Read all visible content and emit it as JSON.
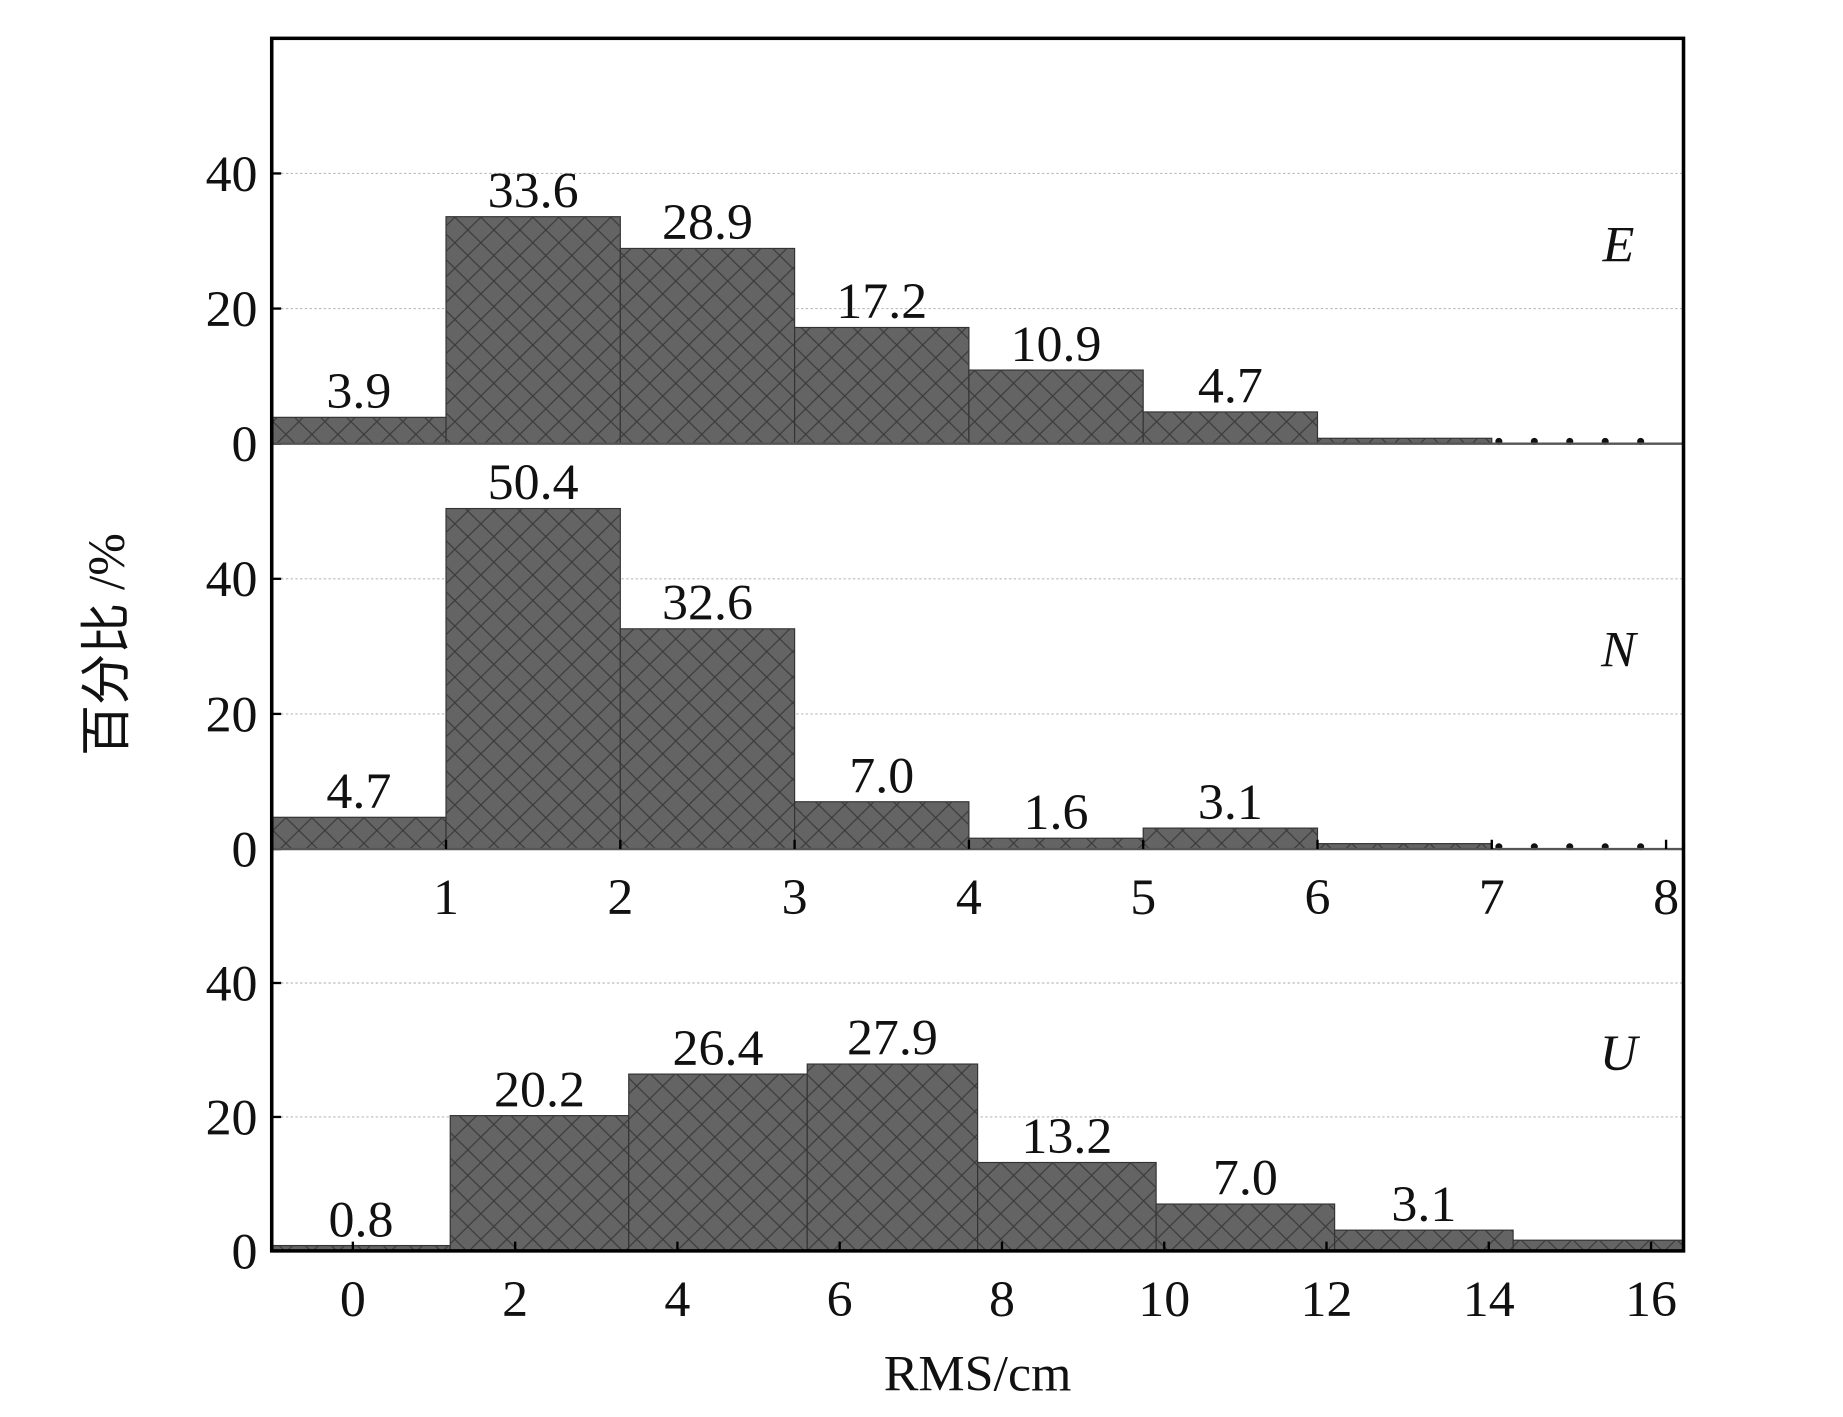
{
  "y_label": "百分比 /%",
  "chart_data": [
    {
      "type": "histogram",
      "label": "E",
      "color": "#646464",
      "bins": [
        0,
        1,
        2,
        3,
        4,
        5,
        6,
        7,
        8
      ],
      "values": [
        3.9,
        33.6,
        28.9,
        17.2,
        10.9,
        4.7,
        0.8,
        0
      ],
      "value_labels": [
        "3.9",
        "33.6",
        "28.9",
        "17.2",
        "10.9",
        "4.7",
        null,
        null
      ],
      "xlim": [
        0,
        8.1
      ],
      "ylim": [
        0,
        60
      ],
      "yticks": [
        0,
        20,
        40
      ],
      "grid": true
    },
    {
      "type": "histogram",
      "label": "N",
      "color": "#646464",
      "bins": [
        0,
        1,
        2,
        3,
        4,
        5,
        6,
        7,
        8
      ],
      "values": [
        4.7,
        50.4,
        32.6,
        7.0,
        1.6,
        3.1,
        0.8,
        0
      ],
      "value_labels": [
        "4.7",
        "50.4",
        "32.6",
        "7.0",
        "1.6",
        "3.1",
        null,
        null
      ],
      "xlim": [
        0,
        8.1
      ],
      "xticks": [
        1,
        2,
        3,
        4,
        5,
        6,
        7,
        8
      ],
      "ylim": [
        0,
        60
      ],
      "yticks": [
        0,
        20,
        40
      ],
      "grid": true
    },
    {
      "type": "histogram",
      "label": "U",
      "color": "#646464",
      "xlabel": "RMS/cm",
      "bins": [
        -1,
        1.2,
        3.4,
        5.6,
        7.7,
        9.9,
        12.1,
        14.3,
        16.4
      ],
      "values": [
        0.8,
        20.2,
        26.4,
        27.9,
        13.2,
        7.0,
        3.1,
        1.6
      ],
      "value_labels": [
        "0.8",
        "20.2",
        "26.4",
        "27.9",
        "13.2",
        "7.0",
        "3.1",
        null
      ],
      "xlim": [
        -1,
        16.4
      ],
      "xticks": [
        0,
        2,
        4,
        6,
        8,
        10,
        12,
        14,
        16
      ],
      "ylim": [
        0,
        60
      ],
      "yticks": [
        0,
        20,
        40
      ],
      "grid": true
    }
  ]
}
